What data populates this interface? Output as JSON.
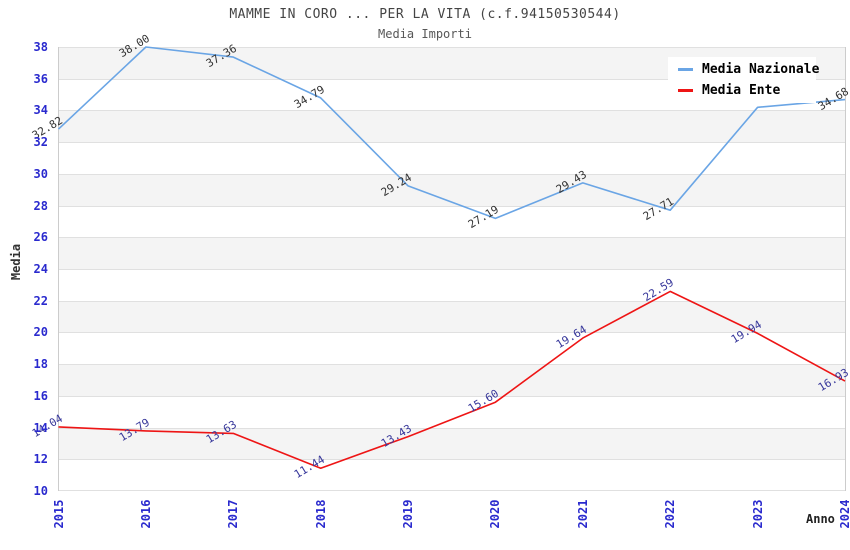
{
  "chart": {
    "title": "MAMME IN CORO ... PER LA VITA (c.f.94150530544)",
    "subtitle": "Media Importi"
  },
  "legend": {
    "position": "top-right",
    "items": [
      {
        "label": "Media Nazionale",
        "color": "#6aa5e5"
      },
      {
        "label": "Media Ente",
        "color": "#ee1515"
      }
    ]
  },
  "chart_data": {
    "type": "line",
    "title": "MAMME IN CORO ... PER LA VITA (c.f.94150530544)",
    "subtitle": "Media Importi",
    "xlabel": "Anno",
    "ylabel": "Media",
    "x": [
      2015,
      2016,
      2017,
      2018,
      2019,
      2020,
      2021,
      2022,
      2023,
      2024
    ],
    "ylim": [
      10,
      38
    ],
    "ytick_step": 2,
    "grid": true,
    "band_colors": [
      "#f4f4f4",
      "#ffffff"
    ],
    "gridline_color": "#e0e0e0",
    "axis_tick_color": "#2a2ace",
    "legend_position": "top-right",
    "series": [
      {
        "name": "Media Nazionale",
        "color": "#6aa5e5",
        "label_color": "#333333",
        "values": [
          32.82,
          38.0,
          37.36,
          34.79,
          29.24,
          27.19,
          29.43,
          27.71,
          34.2,
          34.68
        ],
        "labels": [
          "32.82",
          "38.00",
          "37.36",
          "34.79",
          "29.24",
          "27.19",
          "29.43",
          "27.71",
          "",
          "34.68"
        ]
      },
      {
        "name": "Media Ente",
        "color": "#ee1515",
        "label_color": "#38389b",
        "values": [
          14.04,
          13.79,
          13.63,
          11.44,
          13.43,
          15.6,
          19.64,
          22.59,
          19.94,
          16.93
        ],
        "labels": [
          "14.04",
          "13.79",
          "13.63",
          "11.44",
          "13.43",
          "15.60",
          "19.64",
          "22.59",
          "19.94",
          "16.93"
        ]
      }
    ]
  }
}
